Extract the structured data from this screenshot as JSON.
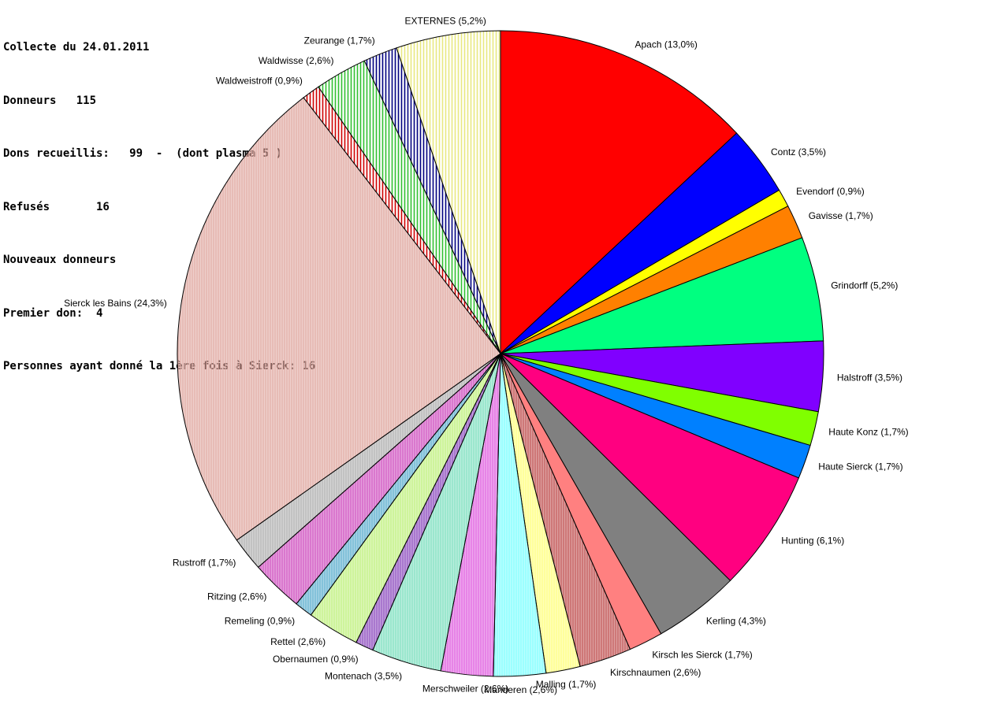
{
  "header": {
    "line1": "Collecte du 24.01.2011",
    "line2": "Donneurs   115",
    "line3": "Dons recueillis:   99  -  (dont plasma 5 )",
    "line4": "Refusés       16",
    "line5": "Nouveaux donneurs",
    "line6": "Premier don:  4",
    "line7": "Personnes ayant donné la 1ère fois à Sierck: 16"
  },
  "chart_data": {
    "type": "pie",
    "slices": [
      {
        "label": "Apach (13,0%)",
        "value": 13.0,
        "color": "#ff0000",
        "pattern": "solid"
      },
      {
        "label": "Contz (3,5%)",
        "value": 3.5,
        "color": "#0000ff",
        "pattern": "solid"
      },
      {
        "label": "Evendorf (0,9%)",
        "value": 0.9,
        "color": "#ffff00",
        "pattern": "solid"
      },
      {
        "label": "Gavisse (1,7%)",
        "value": 1.7,
        "color": "#ff8000",
        "pattern": "solid"
      },
      {
        "label": "Grindorff (5,2%)",
        "value": 5.2,
        "color": "#00ff80",
        "pattern": "solid"
      },
      {
        "label": "Halstroff (3,5%)",
        "value": 3.5,
        "color": "#8000ff",
        "pattern": "solid"
      },
      {
        "label": "Haute Konz (1,7%)",
        "value": 1.7,
        "color": "#80ff00",
        "pattern": "solid"
      },
      {
        "label": "Haute Sierck (1,7%)",
        "value": 1.7,
        "color": "#0080ff",
        "pattern": "solid"
      },
      {
        "label": "Hunting (6,1%)",
        "value": 6.1,
        "color": "#ff0080",
        "pattern": "solid"
      },
      {
        "label": "Kerling (4,3%)",
        "value": 4.3,
        "color": "#808080",
        "pattern": "solid"
      },
      {
        "label": "Kirsch les Sierck (1,7%)",
        "value": 1.7,
        "color": "#ff8080",
        "pattern": "solid"
      },
      {
        "label": "Kirschnaumen (2,6%)",
        "value": 2.6,
        "color": "#c05050",
        "pattern": "hatch"
      },
      {
        "label": "Malling (1,7%)",
        "value": 1.7,
        "color": "#ffff80",
        "pattern": "hatch"
      },
      {
        "label": "Manderen (2,6%)",
        "value": 2.6,
        "color": "#80ffff",
        "pattern": "hatch"
      },
      {
        "label": "Merschweiler (2,6%)",
        "value": 2.6,
        "color": "#e060e0",
        "pattern": "hatch"
      },
      {
        "label": "Montenach (3,5%)",
        "value": 3.5,
        "color": "#80e0c0",
        "pattern": "hatch"
      },
      {
        "label": "Obernaumen (0,9%)",
        "value": 0.9,
        "color": "#9050c0",
        "pattern": "hatch"
      },
      {
        "label": "Rettel (2,6%)",
        "value": 2.6,
        "color": "#c0f080",
        "pattern": "hatch"
      },
      {
        "label": "Remeling (0,9%)",
        "value": 0.9,
        "color": "#60b0d0",
        "pattern": "hatch"
      },
      {
        "label": "Ritzing (2,6%)",
        "value": 2.6,
        "color": "#d050c0",
        "pattern": "hatch"
      },
      {
        "label": "Rustroff (1,7%)",
        "value": 1.7,
        "color": "#b0b0b0",
        "pattern": "hatch"
      },
      {
        "label": "Sierck les Bains (24,3%)",
        "value": 24.3,
        "color": "#e0a8a0",
        "pattern": "hatch"
      },
      {
        "label": "Waldweistroff (0,9%)",
        "value": 0.9,
        "color": "#d00000",
        "pattern": "stripe"
      },
      {
        "label": "Waldwisse (2,6%)",
        "value": 2.6,
        "color": "#30c030",
        "pattern": "stripe"
      },
      {
        "label": "Zeurange (1,7%)",
        "value": 1.7,
        "color": "#000080",
        "pattern": "stripe"
      },
      {
        "label": "EXTERNES (5,2%)",
        "value": 5.2,
        "color": "#e8e880",
        "pattern": "stripe"
      }
    ],
    "start": "12 o'clock",
    "direction": "clockwise",
    "legend": "none"
  }
}
